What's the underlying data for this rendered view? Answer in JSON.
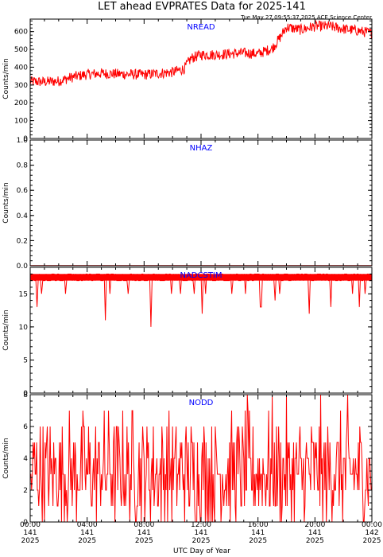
{
  "chart_data": {
    "type": "line",
    "title": "LET ahead EVPRATES Data for 2025-141",
    "timestamp": "Tue May 27 09:55:37 2025 ACE Science Center",
    "xlabel": "UTC Day of Year",
    "x_ticks": [
      {
        "time": "00:00",
        "day": "141",
        "year": "2025"
      },
      {
        "time": "04:00",
        "day": "141",
        "year": "2025"
      },
      {
        "time": "08:00",
        "day": "141",
        "year": "2025"
      },
      {
        "time": "12:00",
        "day": "141",
        "year": "2025"
      },
      {
        "time": "16:00",
        "day": "141",
        "year": "2025"
      },
      {
        "time": "20:00",
        "day": "141",
        "year": "2025"
      },
      {
        "time": "00:00",
        "day": "142",
        "year": "2025"
      }
    ],
    "xlim_hours": [
      0,
      24
    ],
    "line_color": "#ff0000",
    "label_color": "#0000ff",
    "panels": [
      {
        "name": "NREAD",
        "ylabel": "Counts/min",
        "ylim": [
          0,
          670
        ],
        "yticks": [
          "0",
          "100",
          "200",
          "300",
          "400",
          "500",
          "600"
        ],
        "ytick_values": [
          0,
          100,
          200,
          300,
          400,
          500,
          600
        ],
        "points": [
          [
            0,
            320
          ],
          [
            1,
            318
          ],
          [
            2,
            322
          ],
          [
            3,
            345
          ],
          [
            4,
            360
          ],
          [
            5,
            365
          ],
          [
            6,
            362
          ],
          [
            7,
            360
          ],
          [
            8,
            358
          ],
          [
            9,
            365
          ],
          [
            10,
            372
          ],
          [
            10.8,
            390
          ],
          [
            11.3,
            450
          ],
          [
            12,
            470
          ],
          [
            13,
            470
          ],
          [
            14,
            475
          ],
          [
            15,
            480
          ],
          [
            16,
            475
          ],
          [
            17,
            505
          ],
          [
            17.5,
            560
          ],
          [
            18,
            625
          ],
          [
            19,
            610
          ],
          [
            20,
            630
          ],
          [
            21,
            630
          ],
          [
            22,
            615
          ],
          [
            23,
            605
          ],
          [
            24,
            590
          ]
        ],
        "noise": 30
      },
      {
        "name": "NHAZ",
        "ylabel": "Counts/min",
        "ylim": [
          0,
          1
        ],
        "yticks": [
          "0.0",
          "0.2",
          "0.4",
          "0.6",
          "0.8",
          "1.0"
        ],
        "ytick_values": [
          0,
          0.2,
          0.4,
          0.6,
          0.8,
          1.0
        ],
        "points": [
          [
            0,
            0
          ],
          [
            24,
            0
          ]
        ],
        "noise": 0
      },
      {
        "name": "NADCSTIM",
        "ylabel": "Counts/min",
        "ylim": [
          0,
          19
        ],
        "yticks": [
          "0",
          "5",
          "10",
          "15"
        ],
        "ytick_values": [
          0,
          5,
          10,
          15
        ],
        "baseline": 18,
        "dips": [
          [
            0.5,
            13
          ],
          [
            0.8,
            15
          ],
          [
            2.2,
            14
          ],
          [
            2.5,
            15
          ],
          [
            3.8,
            15
          ],
          [
            5.3,
            11
          ],
          [
            5.6,
            15
          ],
          [
            6.9,
            15
          ],
          [
            8.5,
            10
          ],
          [
            9.9,
            15
          ],
          [
            10.6,
            15
          ],
          [
            11.5,
            15
          ],
          [
            12.1,
            12
          ],
          [
            12.3,
            15
          ],
          [
            14.2,
            15
          ],
          [
            15.1,
            15
          ],
          [
            16.2,
            13
          ],
          [
            17.2,
            14
          ],
          [
            17.5,
            15
          ],
          [
            19.6,
            12
          ],
          [
            21.1,
            13
          ],
          [
            22.6,
            15
          ],
          [
            23.1,
            13
          ],
          [
            23.5,
            15
          ]
        ]
      },
      {
        "name": "NODD",
        "ylabel": "Counts/min",
        "ylim": [
          0,
          8
        ],
        "yticks": [
          "0",
          "2",
          "4",
          "6",
          "8"
        ],
        "ytick_values": [
          0,
          2,
          4,
          6,
          8
        ],
        "levels": [
          0,
          1,
          2,
          3,
          4,
          5,
          6,
          7,
          8
        ],
        "level_weights": [
          2,
          3,
          5,
          5,
          4,
          3,
          2,
          1,
          0.3
        ]
      }
    ]
  }
}
